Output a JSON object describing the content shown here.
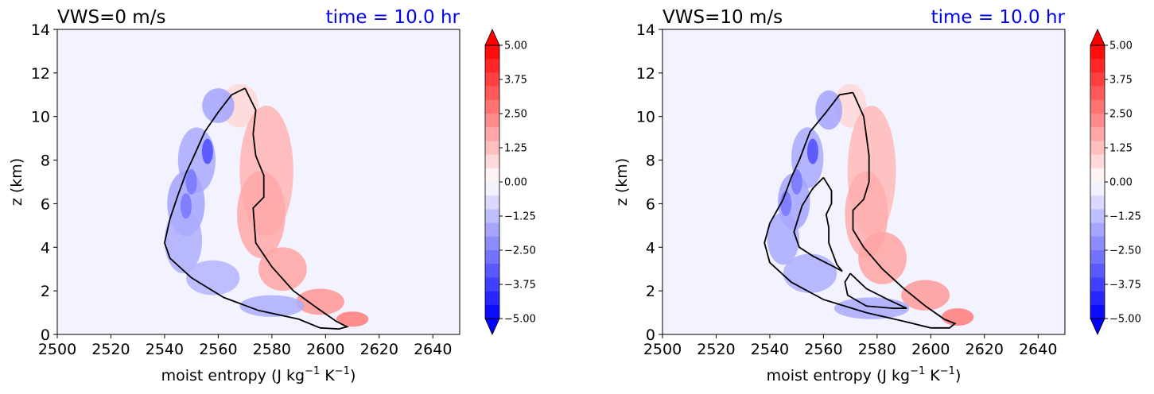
{
  "chart_data": [
    {
      "type": "contourf",
      "title_left": "VWS=0 m/s",
      "title_right": "time = 10.0 hr",
      "title_right_color": "#0000ee",
      "xlabel": "moist entropy (J kg$^{-1}$ K$^{-1}$)",
      "xlabel_main": "moist entropy (J kg",
      "xlabel_sup1": "−1",
      "xlabel_mid": " K",
      "xlabel_sup2": "−1",
      "xlabel_end": ")",
      "ylabel": "z (km)",
      "xlim": [
        2500,
        2650
      ],
      "ylim": [
        0,
        14
      ],
      "xticks": [
        "2500",
        "2520",
        "2540",
        "2560",
        "2580",
        "2600",
        "2620",
        "2640"
      ],
      "yticks": [
        "0",
        "2",
        "4",
        "6",
        "8",
        "10",
        "12",
        "14"
      ],
      "colorbar_ticks": [
        "5.00",
        "3.75",
        "2.50",
        "1.25",
        "0.00",
        "−1.25",
        "−2.50",
        "−3.75",
        "−5.00"
      ],
      "colorbar_range": [
        -5,
        5
      ],
      "colormap": "bwr",
      "black_contour_points": [
        [
          2570,
          11.3
        ],
        [
          2574,
          10.3
        ],
        [
          2573,
          9.2
        ],
        [
          2574,
          8.2
        ],
        [
          2577,
          7.3
        ],
        [
          2577,
          6.3
        ],
        [
          2573,
          5.8
        ],
        [
          2574,
          4.2
        ],
        [
          2580,
          3.1
        ],
        [
          2588,
          2.0
        ],
        [
          2597,
          1.2
        ],
        [
          2604,
          0.6
        ],
        [
          2608,
          0.35
        ],
        [
          2605,
          0.25
        ],
        [
          2598,
          0.3
        ],
        [
          2590,
          0.7
        ],
        [
          2575,
          1.1
        ],
        [
          2562,
          1.7
        ],
        [
          2550,
          2.6
        ],
        [
          2542,
          3.5
        ],
        [
          2540,
          4.2
        ],
        [
          2542,
          5.3
        ],
        [
          2545,
          6.4
        ],
        [
          2548,
          7.4
        ],
        [
          2551,
          8.2
        ],
        [
          2555,
          9.3
        ],
        [
          2560,
          10.2
        ],
        [
          2565,
          11.0
        ],
        [
          2570,
          11.3
        ]
      ],
      "anomaly_pos": [
        [
          2568,
          10.5,
          7,
          1.0,
          0.8
        ],
        [
          2578,
          7.5,
          10,
          3.0,
          1.5
        ],
        [
          2576,
          5.5,
          9,
          2.0,
          1.7
        ],
        [
          2584,
          3.0,
          9,
          1.0,
          1.8
        ],
        [
          2598,
          1.5,
          9,
          0.6,
          2.1
        ],
        [
          2610,
          0.7,
          6,
          0.35,
          2.6
        ]
      ],
      "anomaly_neg": [
        [
          2560,
          10.5,
          6,
          0.8,
          -1.8
        ],
        [
          2552,
          8.0,
          7,
          1.5,
          -1.7
        ],
        [
          2548,
          6.0,
          7,
          1.5,
          -1.8
        ],
        [
          2547,
          4.3,
          7,
          1.5,
          -1.6
        ],
        [
          2558,
          2.6,
          10,
          0.8,
          -1.5
        ],
        [
          2580,
          1.3,
          12,
          0.5,
          -1.6
        ]
      ],
      "neg_box": [
        [
          2556,
          8.4,
          -3.4
        ],
        [
          2550,
          7.0,
          -2.6
        ],
        [
          2548,
          5.9,
          -2.6
        ]
      ]
    },
    {
      "type": "contourf",
      "title_left": "VWS=10 m/s",
      "title_right": "time = 10.0 hr",
      "title_right_color": "#0000ee",
      "xlabel": "moist entropy (J kg$^{-1}$ K$^{-1}$)",
      "xlabel_main": "moist entropy (J kg",
      "xlabel_sup1": "−1",
      "xlabel_mid": " K",
      "xlabel_sup2": "−1",
      "xlabel_end": ")",
      "ylabel": "z (km)",
      "xlim": [
        2500,
        2650
      ],
      "ylim": [
        0,
        14
      ],
      "xticks": [
        "2500",
        "2520",
        "2540",
        "2560",
        "2580",
        "2600",
        "2620",
        "2640"
      ],
      "yticks": [
        "0",
        "2",
        "4",
        "6",
        "8",
        "10",
        "12",
        "14"
      ],
      "colorbar_ticks": [
        "5.00",
        "3.75",
        "2.50",
        "1.25",
        "0.00",
        "−1.25",
        "−2.50",
        "−3.75",
        "−5.00"
      ],
      "colorbar_range": [
        -5,
        5
      ],
      "colormap": "bwr",
      "black_contour_points": [
        [
          2571,
          11.1
        ],
        [
          2575,
          10.0
        ],
        [
          2576,
          9.1
        ],
        [
          2577,
          8.2
        ],
        [
          2577,
          7.0
        ],
        [
          2575,
          6.2
        ],
        [
          2571,
          5.7
        ],
        [
          2571,
          4.8
        ],
        [
          2575,
          4.0
        ],
        [
          2582,
          3.0
        ],
        [
          2590,
          2.1
        ],
        [
          2598,
          1.3
        ],
        [
          2605,
          0.7
        ],
        [
          2609,
          0.5
        ],
        [
          2607,
          0.3
        ],
        [
          2600,
          0.3
        ],
        [
          2590,
          0.6
        ],
        [
          2576,
          1.0
        ],
        [
          2560,
          1.6
        ],
        [
          2548,
          2.4
        ],
        [
          2540,
          3.3
        ],
        [
          2538,
          4.2
        ],
        [
          2540,
          5.1
        ],
        [
          2545,
          6.2
        ],
        [
          2548,
          7.2
        ],
        [
          2551,
          8.0
        ],
        [
          2555,
          9.3
        ],
        [
          2561,
          10.2
        ],
        [
          2566,
          11.0
        ],
        [
          2571,
          11.1
        ]
      ],
      "inner_contour_1": [
        [
          2560,
          7.2
        ],
        [
          2563,
          6.6
        ],
        [
          2563,
          6.0
        ],
        [
          2561,
          5.5
        ],
        [
          2562,
          4.9
        ],
        [
          2562,
          4.2
        ],
        [
          2565,
          3.2
        ],
        [
          2567,
          2.9
        ],
        [
          2564,
          3.1
        ],
        [
          2556,
          3.6
        ],
        [
          2551,
          4.0
        ],
        [
          2549,
          4.7
        ],
        [
          2552,
          5.9
        ],
        [
          2556,
          6.7
        ],
        [
          2560,
          7.2
        ]
      ],
      "inner_contour_2": [
        [
          2570,
          2.8
        ],
        [
          2576,
          2.1
        ],
        [
          2584,
          1.6
        ],
        [
          2591,
          1.2
        ],
        [
          2586,
          1.2
        ],
        [
          2576,
          1.3
        ],
        [
          2569,
          1.8
        ],
        [
          2568,
          2.4
        ],
        [
          2570,
          2.8
        ]
      ],
      "anomaly_pos": [
        [
          2570,
          10.5,
          6,
          1.0,
          0.8
        ],
        [
          2578,
          7.5,
          9,
          3.0,
          1.4
        ],
        [
          2576,
          5.5,
          8,
          2.0,
          1.6
        ],
        [
          2582,
          3.5,
          9,
          1.2,
          1.8
        ],
        [
          2598,
          1.8,
          9,
          0.7,
          2.0
        ],
        [
          2610,
          0.8,
          6,
          0.4,
          2.6
        ]
      ],
      "anomaly_neg": [
        [
          2562,
          10.3,
          5,
          0.9,
          -1.8
        ],
        [
          2554,
          8.1,
          6,
          1.4,
          -1.7
        ],
        [
          2549,
          6.1,
          6,
          1.3,
          -1.8
        ],
        [
          2545,
          4.4,
          6,
          1.2,
          -1.7
        ],
        [
          2555,
          2.8,
          10,
          0.9,
          -1.6
        ],
        [
          2578,
          1.2,
          14,
          0.5,
          -1.7
        ]
      ],
      "neg_box": [
        [
          2556,
          8.4,
          -3.4
        ],
        [
          2550,
          7.0,
          -2.6
        ],
        [
          2546,
          6.0,
          -2.6
        ]
      ]
    }
  ]
}
